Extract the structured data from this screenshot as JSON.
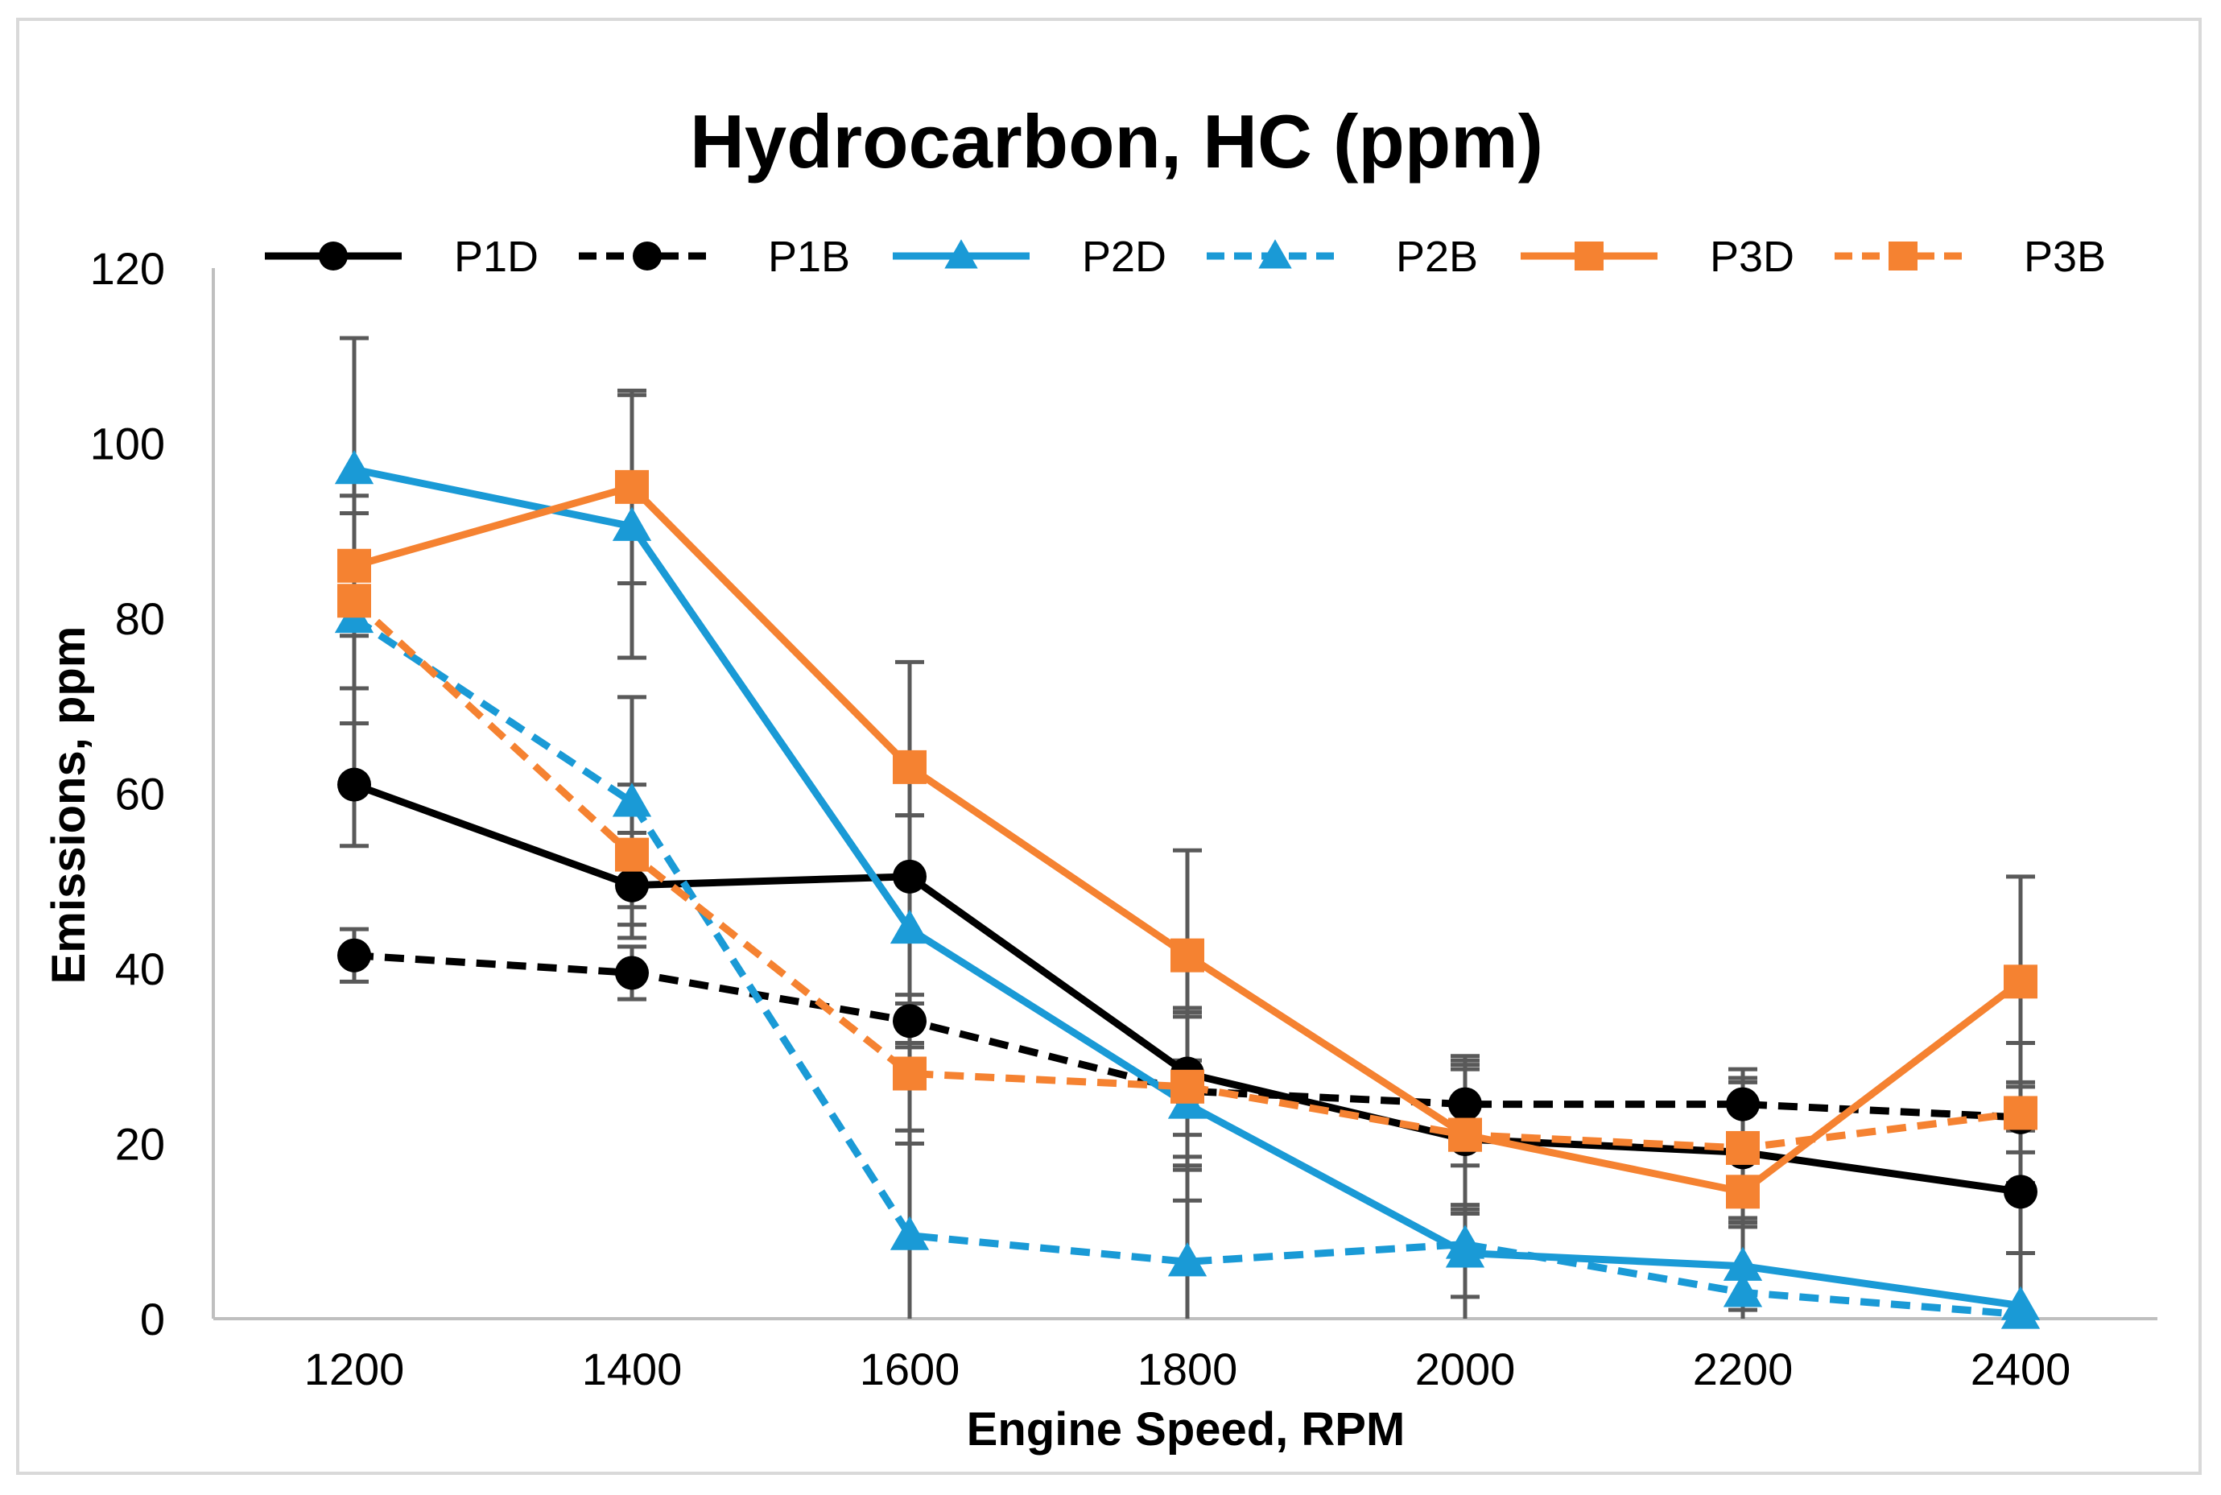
{
  "chart_data": {
    "type": "line",
    "title": "Hydrocarbon, HC (ppm)",
    "xlabel": "Engine Speed, RPM",
    "ylabel": "Emissions, ppm",
    "categories": [
      "1200",
      "1400",
      "1600",
      "1800",
      "2000",
      "2200",
      "2400"
    ],
    "ylim": [
      0,
      120
    ],
    "yticks": [
      "0",
      "20",
      "40",
      "60",
      "80",
      "100",
      "120"
    ],
    "grid": false,
    "legend_position": "top",
    "series": [
      {
        "name": "P1D",
        "color": "#000000",
        "dash": "solid",
        "marker": "circle",
        "values": [
          61,
          49.5,
          50.5,
          28,
          20.5,
          19,
          14.5
        ],
        "errors": [
          7,
          6,
          7,
          7,
          8,
          8,
          7
        ]
      },
      {
        "name": "P1B",
        "color": "#000000",
        "dash": "dashed",
        "marker": "circle",
        "values": [
          41.5,
          39.5,
          34,
          26,
          24.5,
          24.5,
          23
        ],
        "errors": [
          3,
          3,
          3,
          9,
          5,
          4,
          4
        ]
      },
      {
        "name": "P2D",
        "color": "#1a9ad6",
        "dash": "solid",
        "marker": "triangle",
        "values": [
          97,
          90.5,
          44.5,
          24.5,
          7.5,
          6,
          1.5
        ],
        "errors": [
          15,
          15,
          13,
          11,
          5,
          5,
          6
        ]
      },
      {
        "name": "P2B",
        "color": "#1a9ad6",
        "dash": "dashed",
        "marker": "triangle",
        "values": [
          80,
          59,
          9.5,
          6.5,
          8.5,
          3,
          0.5
        ],
        "errors": [
          12,
          12,
          12,
          11,
          9,
          8,
          7
        ]
      },
      {
        "name": "P3D",
        "color": "#f58231",
        "dash": "solid",
        "marker": "square",
        "values": [
          86,
          95,
          63,
          41.5,
          21,
          14.5,
          38.5
        ],
        "errors": [
          8,
          11,
          12,
          12,
          9,
          4,
          12
        ]
      },
      {
        "name": "P3B",
        "color": "#f58231",
        "dash": "dashed",
        "marker": "square",
        "values": [
          82,
          53,
          28,
          26.5,
          21,
          19.5,
          23.5
        ],
        "errors": [
          10,
          8,
          8,
          8,
          8,
          8,
          8
        ]
      }
    ]
  }
}
